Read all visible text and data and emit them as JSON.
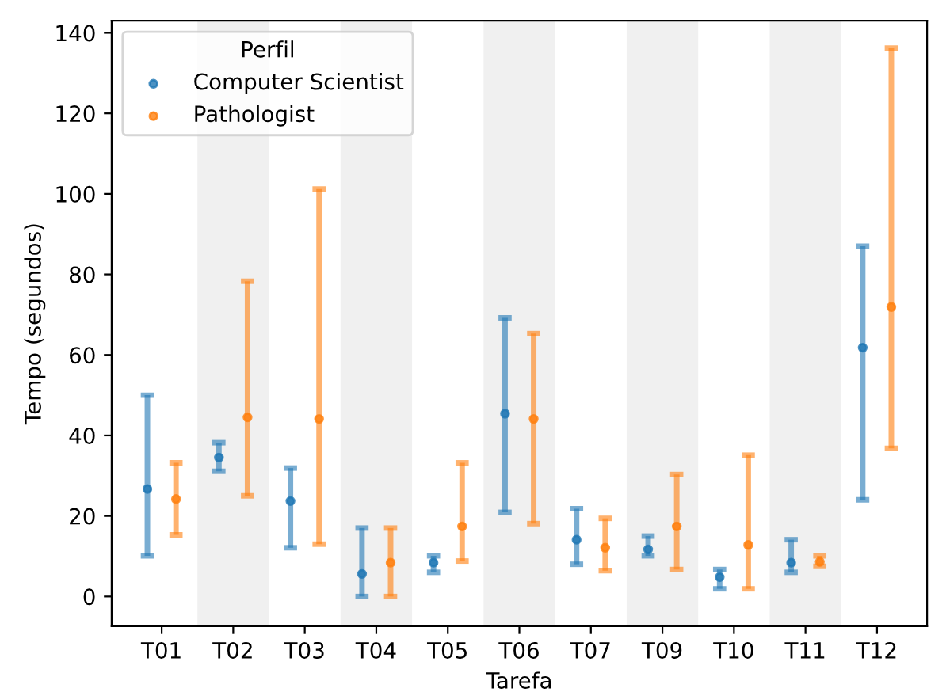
{
  "chart_data": {
    "type": "scatter",
    "xlabel": "Tarefa",
    "ylabel": "Tempo (segundos)",
    "legend_title": "Perfil",
    "legend": "top left",
    "grid": false,
    "categories": [
      "T01",
      "T02",
      "T03",
      "T04",
      "T05",
      "T06",
      "T07",
      "T09",
      "T10",
      "T11",
      "T12"
    ],
    "ylim": [
      -7.4,
      143
    ],
    "yticks": [
      0,
      20,
      40,
      60,
      80,
      100,
      120,
      140
    ],
    "series": [
      {
        "name": "Computer Scientist",
        "color": "#1f77b4",
        "values": [
          26.7,
          34.5,
          23.7,
          5.6,
          8.4,
          45.4,
          14.1,
          11.7,
          4.8,
          8.4,
          61.8
        ],
        "errors": [
          [
            10.1,
            50.0
          ],
          [
            31.1,
            38.2
          ],
          [
            12.1,
            31.9
          ],
          [
            0,
            17.0
          ],
          [
            6.0,
            10.1
          ],
          [
            20.9,
            69.2
          ],
          [
            8.0,
            21.8
          ],
          [
            10.1,
            15.0
          ],
          [
            1.9,
            6.7
          ],
          [
            6.0,
            14.1
          ],
          [
            24.0,
            87.0
          ]
        ]
      },
      {
        "name": "Pathologist",
        "color": "#ff7f0e",
        "values": [
          24.2,
          44.5,
          44.1,
          8.4,
          17.4,
          44.1,
          12.1,
          17.4,
          12.8,
          8.6,
          71.9
        ],
        "errors": [
          [
            15.3,
            33.2
          ],
          [
            25.0,
            78.3
          ],
          [
            13.0,
            101.2
          ],
          [
            0,
            17.0
          ],
          [
            8.8,
            33.2
          ],
          [
            18.1,
            65.3
          ],
          [
            6.4,
            19.4
          ],
          [
            6.7,
            30.3
          ],
          [
            1.9,
            35.1
          ],
          [
            7.5,
            10.1
          ],
          [
            36.8,
            136.2
          ]
        ]
      }
    ],
    "bands": [
      {
        "axis": "x",
        "from": "T02",
        "to": "T02",
        "color": "#f0f0f0"
      },
      {
        "axis": "x",
        "from": "T04",
        "to": "T04",
        "color": "#f0f0f0"
      },
      {
        "axis": "x",
        "from": "T06",
        "to": "T06",
        "color": "#f0f0f0"
      },
      {
        "axis": "x",
        "from": "T09",
        "to": "T09",
        "color": "#f0f0f0"
      },
      {
        "axis": "x",
        "from": "T11",
        "to": "T11",
        "color": "#f0f0f0"
      }
    ]
  }
}
